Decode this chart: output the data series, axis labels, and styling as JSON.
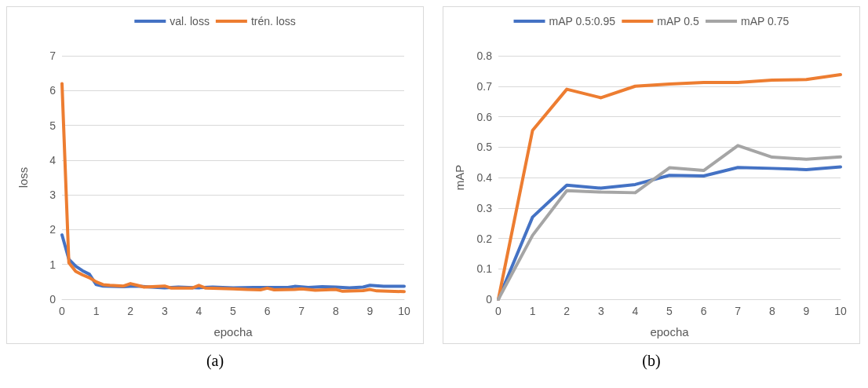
{
  "chart_data": [
    {
      "type": "line",
      "xlabel": "epocha",
      "ylabel": "loss",
      "xlim": [
        0,
        10
      ],
      "xticks": [
        0,
        1,
        2,
        3,
        4,
        5,
        6,
        7,
        8,
        9,
        10
      ],
      "ylim": [
        0,
        7
      ],
      "yticks": [
        0,
        1,
        2,
        3,
        4,
        5,
        6,
        7
      ],
      "grid": "y",
      "legend": "top",
      "marker": "none",
      "line_style": "solid",
      "annotations": [
        "(a)"
      ],
      "series": [
        {
          "name": "val. loss",
          "color": "#4472c4",
          "x": [
            0,
            0.2,
            0.4,
            0.6,
            0.8,
            1,
            1.2,
            1.4,
            1.8,
            2,
            2.2,
            2.6,
            3,
            3.4,
            4,
            4.4,
            5,
            5.6,
            6,
            6.6,
            6.8,
            7.2,
            7.6,
            8,
            8.4,
            8.8,
            9,
            9.4,
            10
          ],
          "values": [
            1.85,
            1.15,
            0.95,
            0.82,
            0.72,
            0.42,
            0.38,
            0.37,
            0.36,
            0.37,
            0.38,
            0.35,
            0.33,
            0.35,
            0.33,
            0.35,
            0.33,
            0.34,
            0.34,
            0.34,
            0.37,
            0.34,
            0.36,
            0.35,
            0.33,
            0.35,
            0.4,
            0.37,
            0.37
          ]
        },
        {
          "name": "trén. loss",
          "color": "#ed7d31",
          "x": [
            0,
            0.2,
            0.4,
            0.6,
            0.8,
            1,
            1.2,
            1.4,
            1.8,
            2,
            2.2,
            2.4,
            3,
            3.2,
            3.8,
            4,
            4.2,
            5,
            5.4,
            5.8,
            6,
            6.2,
            6.8,
            7,
            7.4,
            8,
            8.2,
            8.8,
            9,
            9.2,
            10
          ],
          "values": [
            6.2,
            1.05,
            0.8,
            0.7,
            0.62,
            0.5,
            0.42,
            0.4,
            0.38,
            0.45,
            0.4,
            0.35,
            0.38,
            0.32,
            0.32,
            0.4,
            0.32,
            0.3,
            0.28,
            0.27,
            0.32,
            0.27,
            0.28,
            0.3,
            0.26,
            0.28,
            0.23,
            0.25,
            0.28,
            0.24,
            0.22
          ]
        }
      ]
    },
    {
      "type": "line",
      "xlabel": "epocha",
      "ylabel": "mAP",
      "categories": [
        "0",
        "1",
        "2",
        "3",
        "4",
        "5",
        "6",
        "7",
        "8",
        "9",
        "10"
      ],
      "ylim": [
        0,
        0.8
      ],
      "yticks": [
        0,
        0.1,
        0.2,
        0.3,
        0.4,
        0.5,
        0.6,
        0.7,
        0.8
      ],
      "grid": "y",
      "legend": "top",
      "marker": "none",
      "line_style": "solid",
      "annotations": [
        "(b)"
      ],
      "series": [
        {
          "name": "mAP 0.5:0.95",
          "color": "#4472c4",
          "values": [
            0,
            0.27,
            0.375,
            0.365,
            0.377,
            0.407,
            0.405,
            0.433,
            0.43,
            0.426,
            0.435
          ]
        },
        {
          "name": "mAP 0.5",
          "color": "#ed7d31",
          "values": [
            0,
            0.555,
            0.69,
            0.662,
            0.7,
            0.707,
            0.712,
            0.712,
            0.72,
            0.722,
            0.738
          ]
        },
        {
          "name": "mAP 0.75",
          "color": "#a5a5a5",
          "values": [
            0,
            0.21,
            0.357,
            0.352,
            0.35,
            0.432,
            0.423,
            0.505,
            0.467,
            0.46,
            0.468
          ]
        }
      ]
    }
  ]
}
